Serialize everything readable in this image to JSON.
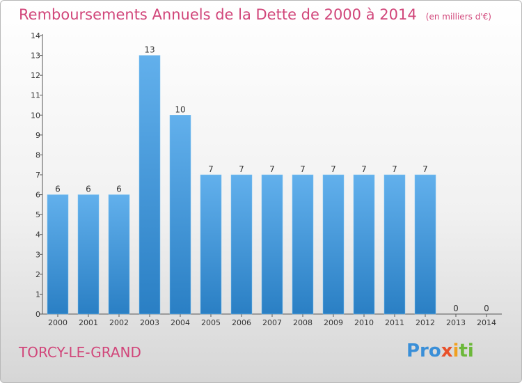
{
  "header": {
    "title": "Remboursements Annuels de la Dette de 2000 à 2014",
    "unit": "(en milliers d'€)"
  },
  "footer": {
    "commune": "TORCY-LE-GRAND",
    "logo": [
      "Pro",
      "x",
      "i",
      "ti"
    ]
  },
  "colors": {
    "bar_top": "#62b0ec",
    "bar_bottom": "#2a7fc4",
    "title": "#d1467a"
  },
  "chart_data": {
    "type": "bar",
    "title": "Remboursements Annuels de la Dette de 2000 à 2014",
    "categories": [
      "2000",
      "2001",
      "2002",
      "2003",
      "2004",
      "2005",
      "2006",
      "2007",
      "2008",
      "2009",
      "2010",
      "2011",
      "2012",
      "2013",
      "2014"
    ],
    "values": [
      6,
      6,
      6,
      13,
      10,
      7,
      7,
      7,
      7,
      7,
      7,
      7,
      7,
      0,
      0
    ],
    "ylim": [
      0,
      14
    ],
    "yticks": [
      0,
      1,
      2,
      3,
      4,
      5,
      6,
      7,
      8,
      9,
      10,
      11,
      12,
      13,
      14
    ],
    "grid": false,
    "xlabel": "",
    "ylabel": ""
  }
}
